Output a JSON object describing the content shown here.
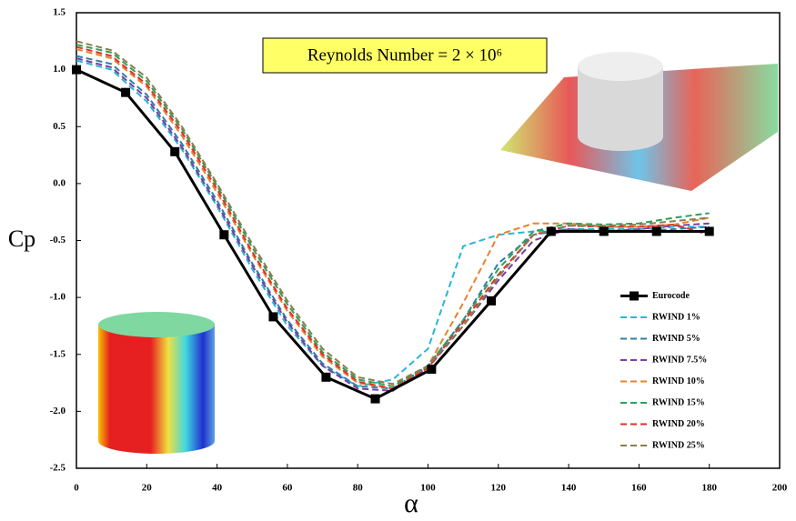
{
  "chart_data": {
    "type": "line",
    "annotation": "Reynolds Number = 2 × 10⁶",
    "x_label": "α",
    "y_label": "Cp",
    "xlim": [
      0,
      200
    ],
    "ylim": [
      -2.5,
      1.5
    ],
    "xticks": [
      0,
      20,
      40,
      60,
      80,
      100,
      120,
      140,
      160,
      180,
      200
    ],
    "yticks": [
      -2.5,
      {
        "value": -2,
        "label": "-2.0"
      },
      -1.5,
      {
        "value": -1,
        "label": "-1.0"
      },
      -0.5,
      {
        "value": 0,
        "label": "0.0"
      },
      0.5,
      {
        "value": 1,
        "label": "1.0"
      },
      1.5
    ],
    "grid": false,
    "legend": "lower right",
    "series": [
      {
        "name": "Eurocode",
        "color": "#000000",
        "dashed": false,
        "markers": true,
        "x": [
          0,
          14,
          28,
          42,
          56,
          71,
          85,
          101,
          118,
          135,
          150,
          165,
          180
        ],
        "values": [
          1.0,
          0.8,
          0.28,
          -0.45,
          -1.17,
          -1.7,
          -1.89,
          -1.63,
          -1.03,
          -0.42,
          -0.42,
          -0.42,
          -0.42
        ]
      },
      {
        "name": "RWIND 1%",
        "color": "#29b6d8",
        "dashed": true,
        "markers": false,
        "x": [
          0,
          10,
          20,
          30,
          40,
          50,
          60,
          70,
          80,
          90,
          100,
          110,
          120,
          130,
          140,
          150,
          160,
          170,
          180
        ],
        "values": [
          1.08,
          1.0,
          0.72,
          0.3,
          -0.2,
          -0.75,
          -1.25,
          -1.6,
          -1.78,
          -1.72,
          -1.45,
          -0.55,
          -0.45,
          -0.42,
          -0.4,
          -0.4,
          -0.4,
          -0.38,
          -0.38
        ]
      },
      {
        "name": "RWIND 5%",
        "color": "#2e7fa8",
        "dashed": true,
        "markers": false,
        "x": [
          0,
          10,
          20,
          30,
          40,
          50,
          60,
          70,
          80,
          90,
          100,
          110,
          120,
          130,
          140,
          150,
          160,
          170,
          180
        ],
        "values": [
          1.12,
          1.05,
          0.78,
          0.35,
          -0.15,
          -0.7,
          -1.2,
          -1.58,
          -1.78,
          -1.8,
          -1.6,
          -1.2,
          -0.7,
          -0.45,
          -0.4,
          -0.42,
          -0.42,
          -0.4,
          -0.38
        ]
      },
      {
        "name": "RWIND 7.5%",
        "color": "#7a3fa0",
        "dashed": true,
        "markers": false,
        "x": [
          0,
          10,
          20,
          30,
          40,
          50,
          60,
          70,
          80,
          90,
          100,
          110,
          120,
          130,
          140,
          150,
          160,
          170,
          180
        ],
        "values": [
          1.1,
          1.02,
          0.75,
          0.32,
          -0.18,
          -0.72,
          -1.22,
          -1.6,
          -1.8,
          -1.82,
          -1.62,
          -1.25,
          -0.85,
          -0.5,
          -0.4,
          -0.42,
          -0.4,
          -0.37,
          -0.35
        ]
      },
      {
        "name": "RWIND 10%",
        "color": "#e6822e",
        "dashed": true,
        "markers": false,
        "x": [
          0,
          10,
          20,
          30,
          40,
          50,
          60,
          70,
          80,
          90,
          100,
          110,
          120,
          130,
          140,
          150,
          160,
          170,
          180
        ],
        "values": [
          1.18,
          1.1,
          0.85,
          0.42,
          -0.08,
          -0.62,
          -1.12,
          -1.52,
          -1.75,
          -1.8,
          -1.6,
          -1.05,
          -0.45,
          -0.35,
          -0.35,
          -0.38,
          -0.38,
          -0.36,
          -0.3
        ]
      },
      {
        "name": "RWIND 15%",
        "color": "#2ca05a",
        "dashed": true,
        "markers": false,
        "x": [
          0,
          10,
          20,
          30,
          40,
          50,
          60,
          70,
          80,
          90,
          100,
          110,
          120,
          130,
          140,
          150,
          160,
          170,
          180
        ],
        "values": [
          1.22,
          1.15,
          0.9,
          0.48,
          -0.02,
          -0.56,
          -1.06,
          -1.48,
          -1.72,
          -1.78,
          -1.6,
          -1.2,
          -0.75,
          -0.42,
          -0.35,
          -0.36,
          -0.35,
          -0.3,
          -0.26
        ]
      },
      {
        "name": "RWIND 20%",
        "color": "#e0302a",
        "dashed": true,
        "markers": false,
        "x": [
          0,
          10,
          20,
          30,
          40,
          50,
          60,
          70,
          80,
          90,
          100,
          110,
          120,
          130,
          140,
          150,
          160,
          170,
          180
        ],
        "values": [
          1.2,
          1.12,
          0.87,
          0.45,
          -0.05,
          -0.6,
          -1.1,
          -1.5,
          -1.74,
          -1.8,
          -1.62,
          -1.22,
          -0.8,
          -0.45,
          -0.37,
          -0.38,
          -0.38,
          -0.36,
          -0.45
        ]
      },
      {
        "name": "RWIND 25%",
        "color": "#8b7d4a",
        "dashed": true,
        "markers": false,
        "x": [
          0,
          10,
          20,
          30,
          40,
          50,
          60,
          70,
          80,
          90,
          100,
          110,
          120,
          130,
          140,
          150,
          160,
          170,
          180
        ],
        "values": [
          1.25,
          1.17,
          0.93,
          0.5,
          0.0,
          -0.53,
          -1.03,
          -1.45,
          -1.7,
          -1.76,
          -1.6,
          -1.25,
          -0.82,
          -0.45,
          -0.37,
          -0.37,
          -0.36,
          -0.33,
          -0.3
        ]
      }
    ]
  }
}
